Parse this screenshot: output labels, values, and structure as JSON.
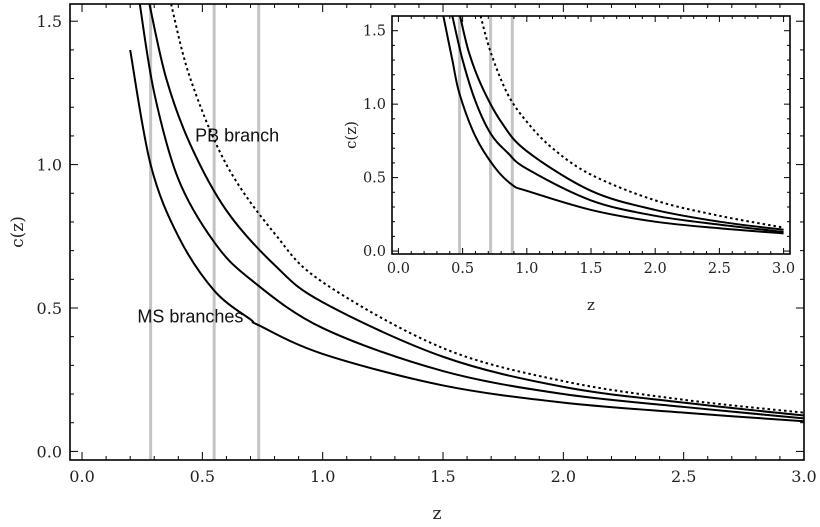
{
  "chart_data": [
    {
      "type": "line",
      "title": "",
      "xlabel": "z",
      "ylabel": "c(z)",
      "xlim": [
        -0.05,
        3.0
      ],
      "ylim": [
        -0.03,
        1.56
      ],
      "xticks": [
        "0.0",
        "0.5",
        "1.0",
        "1.5",
        "2.0",
        "2.5",
        "3.0"
      ],
      "yticks": [
        "0.0",
        "0.5",
        "1.0",
        "1.5"
      ],
      "annotations": [
        {
          "text": "PB branch",
          "x": 0.47,
          "y": 1.08
        },
        {
          "text": "MS branches",
          "x": 0.23,
          "y": 0.45
        }
      ],
      "vertical_lines": [
        0.285,
        0.549,
        0.734
      ],
      "series": [
        {
          "style": "solid",
          "x": [
            0.2,
            0.285,
            0.4,
            0.55,
            0.7,
            0.734,
            1.0,
            1.5,
            2.0,
            2.5,
            3.0
          ],
          "y": [
            1.4,
            1.0,
            0.75,
            0.56,
            0.46,
            0.44,
            0.34,
            0.23,
            0.17,
            0.135,
            0.105
          ]
        },
        {
          "style": "solid",
          "x": [
            0.24,
            0.3,
            0.4,
            0.549,
            0.7,
            1.0,
            1.5,
            2.0,
            2.5,
            3.0
          ],
          "y": [
            1.56,
            1.25,
            0.95,
            0.73,
            0.6,
            0.43,
            0.28,
            0.2,
            0.155,
            0.115
          ]
        },
        {
          "style": "solid",
          "x": [
            0.28,
            0.35,
            0.45,
            0.6,
            0.8,
            1.0,
            1.5,
            2.0,
            2.5,
            3.0
          ],
          "y": [
            1.56,
            1.3,
            1.07,
            0.84,
            0.65,
            0.52,
            0.33,
            0.225,
            0.17,
            0.125
          ]
        },
        {
          "style": "dotted",
          "x": [
            0.37,
            0.45,
            0.6,
            0.8,
            1.0,
            1.5,
            2.0,
            2.5,
            3.0
          ],
          "y": [
            1.56,
            1.3,
            1.0,
            0.76,
            0.59,
            0.36,
            0.245,
            0.18,
            0.135
          ]
        }
      ],
      "grid": false
    },
    {
      "type": "line",
      "title": "",
      "xlabel": "z",
      "ylabel": "c(z)",
      "xlim": [
        -0.05,
        3.05
      ],
      "ylim": [
        -0.02,
        1.6
      ],
      "xticks": [
        "0.0",
        "0.5",
        "1.0",
        "1.5",
        "2.0",
        "2.5",
        "3.0"
      ],
      "yticks": [
        "0.0",
        "0.5",
        "1.0",
        "1.5"
      ],
      "vertical_lines": [
        0.476,
        0.718,
        0.887
      ],
      "series": [
        {
          "style": "solid",
          "x": [
            0.35,
            0.42,
            0.476,
            0.6,
            0.75,
            0.887,
            1.0,
            1.5,
            2.0,
            2.5,
            3.0
          ],
          "y": [
            1.6,
            1.3,
            1.07,
            0.78,
            0.57,
            0.45,
            0.41,
            0.28,
            0.2,
            0.155,
            0.12
          ]
        },
        {
          "style": "solid",
          "x": [
            0.42,
            0.5,
            0.6,
            0.718,
            0.85,
            1.0,
            1.5,
            2.0,
            2.5,
            3.0
          ],
          "y": [
            1.6,
            1.3,
            1.02,
            0.8,
            0.67,
            0.56,
            0.345,
            0.24,
            0.18,
            0.13
          ]
        },
        {
          "style": "solid",
          "x": [
            0.48,
            0.55,
            0.65,
            0.8,
            1.0,
            1.5,
            2.0,
            2.5,
            3.0
          ],
          "y": [
            1.6,
            1.35,
            1.12,
            0.88,
            0.68,
            0.41,
            0.28,
            0.2,
            0.145
          ]
        },
        {
          "style": "dotted",
          "x": [
            0.64,
            0.72,
            0.85,
            1.0,
            1.2,
            1.5,
            2.0,
            2.5,
            3.0
          ],
          "y": [
            1.6,
            1.35,
            1.07,
            0.88,
            0.7,
            0.52,
            0.345,
            0.24,
            0.16
          ]
        }
      ],
      "grid": false
    }
  ]
}
